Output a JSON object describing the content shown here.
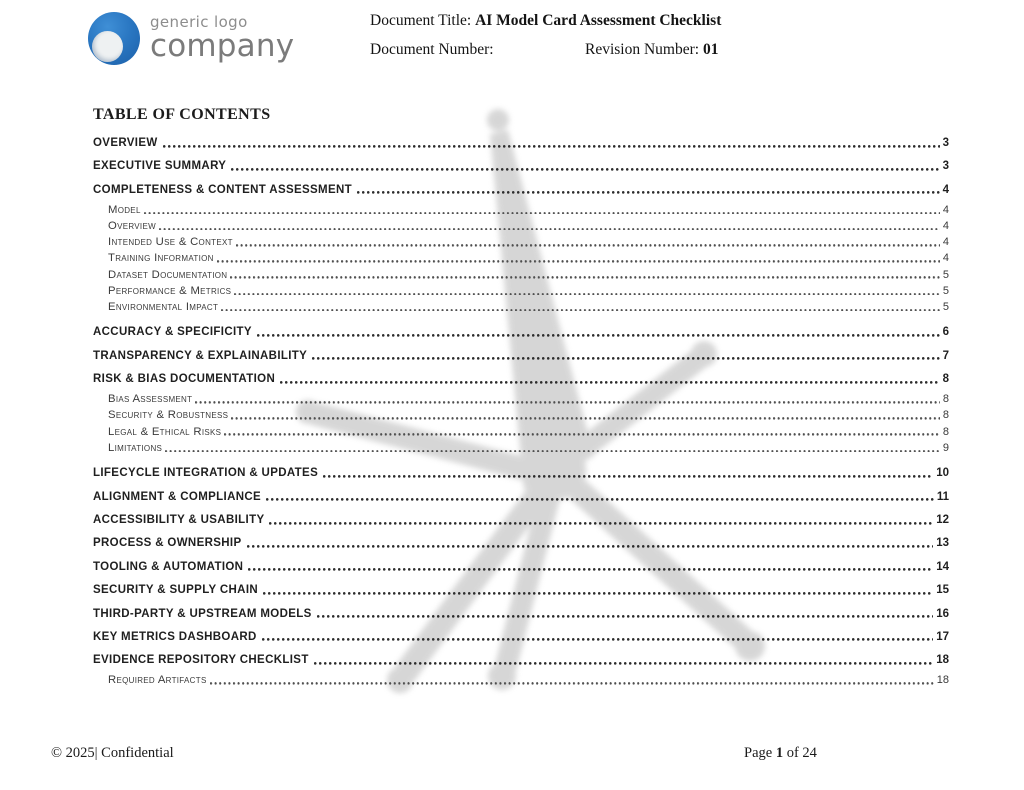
{
  "header": {
    "logo": {
      "line1": "generic logo",
      "line2": "company"
    },
    "doc_title_label": "Document Title:",
    "doc_title": "AI Model Card Assessment Checklist",
    "doc_number_label": "Document Number:",
    "doc_number": "",
    "revision_label": "Revision Number:",
    "revision": "01"
  },
  "toc": {
    "title": "TABLE OF CONTENTS",
    "entries": [
      {
        "label": "OVERVIEW",
        "page": "3",
        "level": 1
      },
      {
        "label": "EXECUTIVE SUMMARY",
        "page": "3",
        "level": 1
      },
      {
        "label": "COMPLETENESS & CONTENT ASSESSMENT",
        "page": "4",
        "level": 1
      },
      {
        "label": "Model",
        "page": "4",
        "level": 2
      },
      {
        "label": "Overview",
        "page": "4",
        "level": 2
      },
      {
        "label": "Intended Use & Context",
        "page": "4",
        "level": 2
      },
      {
        "label": "Training Information",
        "page": "4",
        "level": 2
      },
      {
        "label": "Dataset Documentation",
        "page": "5",
        "level": 2
      },
      {
        "label": "Performance & Metrics",
        "page": "5",
        "level": 2
      },
      {
        "label": "Environmental Impact",
        "page": "5",
        "level": 2
      },
      {
        "label": "ACCURACY & SPECIFICITY",
        "page": "6",
        "level": 1
      },
      {
        "label": "TRANSPARENCY & EXPLAINABILITY",
        "page": "7",
        "level": 1
      },
      {
        "label": "RISK & BIAS DOCUMENTATION",
        "page": "8",
        "level": 1
      },
      {
        "label": "Bias Assessment",
        "page": "8",
        "level": 2
      },
      {
        "label": "Security & Robustness",
        "page": "8",
        "level": 2
      },
      {
        "label": "Legal & Ethical Risks",
        "page": "8",
        "level": 2
      },
      {
        "label": "Limitations",
        "page": "9",
        "level": 2
      },
      {
        "label": "LIFECYCLE INTEGRATION & UPDATES",
        "page": "10",
        "level": 1
      },
      {
        "label": "ALIGNMENT & COMPLIANCE",
        "page": "11",
        "level": 1
      },
      {
        "label": "ACCESSIBILITY & USABILITY",
        "page": "12",
        "level": 1
      },
      {
        "label": "PROCESS & OWNERSHIP",
        "page": "13",
        "level": 1
      },
      {
        "label": "TOOLING & AUTOMATION",
        "page": "14",
        "level": 1
      },
      {
        "label": "SECURITY & SUPPLY CHAIN",
        "page": "15",
        "level": 1
      },
      {
        "label": "THIRD-PARTY & UPSTREAM MODELS",
        "page": "16",
        "level": 1
      },
      {
        "label": "KEY METRICS DASHBOARD",
        "page": "17",
        "level": 1
      },
      {
        "label": "EVIDENCE REPOSITORY CHECKLIST",
        "page": "18",
        "level": 1
      },
      {
        "label": "Required Artifacts",
        "page": "18",
        "level": 2
      }
    ]
  },
  "footer": {
    "copyright": "© 2025| Confidential",
    "page_prefix": "Page",
    "page_current": "1",
    "page_middle": "of",
    "page_total": "24"
  },
  "colors": {
    "logo_blue": "#2a77c2",
    "logo_text_gray": "#7b7b7b",
    "watermark_gray": "#cdcdcd",
    "text_dark": "#1f1f1f"
  }
}
